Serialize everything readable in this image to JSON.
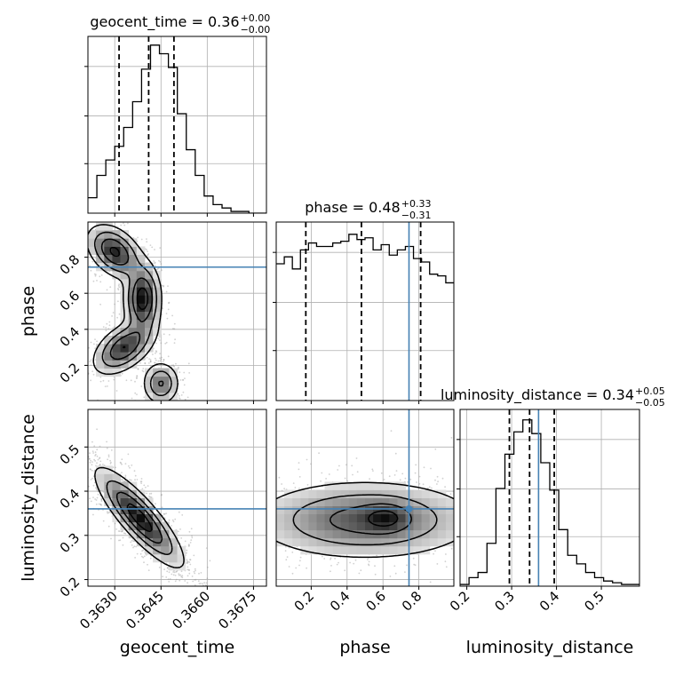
{
  "chart_data": {
    "type": "corner",
    "parameters": [
      "geocent_time",
      "phase",
      "luminosity_distance"
    ],
    "colors": {
      "truth": "#4682b4",
      "hist": "#000000",
      "quantile": "#000000",
      "grid": "#b0b0b0",
      "samples": "#999999"
    },
    "grid": true,
    "titles": [
      {
        "param": "geocent_time",
        "median": "0.36",
        "plus": "+0.00",
        "minus": "−0.00"
      },
      {
        "param": "phase",
        "median": "0.48",
        "plus": "+0.33",
        "minus": "−0.31"
      },
      {
        "param": "luminosity_distance",
        "median": "0.34",
        "plus": "+0.05",
        "minus": "−0.05"
      }
    ],
    "truths": {
      "geocent_time": null,
      "phase": 0.745,
      "luminosity_distance": 0.36
    },
    "axes": {
      "geocent_time": {
        "range": [
          0.36213,
          0.36792
        ],
        "ticks": [
          0.363,
          0.3645,
          0.366,
          0.3675
        ],
        "tick_labels": [
          "0.3630",
          "0.3645",
          "0.3660",
          "0.3675"
        ]
      },
      "phase": {
        "range": [
          0.005,
          0.995
        ],
        "ticks": [
          0.2,
          0.4,
          0.6,
          0.8
        ],
        "tick_labels": [
          "0.2",
          "0.4",
          "0.6",
          "0.8"
        ]
      },
      "luminosity_distance": {
        "range": [
          0.185,
          0.585
        ],
        "ticks": [
          0.2,
          0.3,
          0.4,
          0.5
        ],
        "tick_labels": [
          "0.2",
          "0.3",
          "0.4",
          "0.5"
        ]
      }
    },
    "marginals": {
      "geocent_time": {
        "bin_edges": [
          0.36213,
          0.36242,
          0.36271,
          0.363,
          0.36329,
          0.36358,
          0.36387,
          0.36416,
          0.36445,
          0.36474,
          0.36503,
          0.36532,
          0.36561,
          0.3659,
          0.36619,
          0.36648,
          0.36677,
          0.36706,
          0.36735,
          0.36764,
          0.36792
        ],
        "counts": [
          0.09,
          0.22,
          0.31,
          0.39,
          0.5,
          0.65,
          0.84,
          0.98,
          0.93,
          0.85,
          0.58,
          0.37,
          0.22,
          0.1,
          0.05,
          0.03,
          0.01,
          0.01,
          0.0,
          0.0
        ],
        "quantiles": [
          0.36314,
          0.3641,
          0.36492
        ]
      },
      "phase": {
        "bin_edges": [
          0.005,
          0.05,
          0.095,
          0.14,
          0.185,
          0.23,
          0.275,
          0.32,
          0.365,
          0.41,
          0.455,
          0.5,
          0.545,
          0.59,
          0.635,
          0.68,
          0.725,
          0.77,
          0.815,
          0.86,
          0.905,
          0.95,
          0.995
        ],
        "counts": [
          0.79,
          0.83,
          0.76,
          0.87,
          0.91,
          0.89,
          0.89,
          0.91,
          0.92,
          0.96,
          0.93,
          0.94,
          0.87,
          0.9,
          0.84,
          0.87,
          0.89,
          0.82,
          0.8,
          0.73,
          0.72,
          0.68
        ],
        "quantiles": [
          0.17,
          0.48,
          0.81
        ]
      },
      "luminosity_distance": {
        "bin_edges": [
          0.185,
          0.205,
          0.225,
          0.245,
          0.265,
          0.285,
          0.305,
          0.325,
          0.345,
          0.365,
          0.385,
          0.405,
          0.425,
          0.445,
          0.465,
          0.485,
          0.505,
          0.525,
          0.545,
          0.565,
          0.585
        ],
        "counts": [
          0.01,
          0.05,
          0.08,
          0.25,
          0.57,
          0.77,
          0.9,
          0.97,
          0.89,
          0.72,
          0.56,
          0.33,
          0.18,
          0.13,
          0.08,
          0.05,
          0.03,
          0.02,
          0.01,
          0.01
        ],
        "quantiles": [
          0.295,
          0.34,
          0.395
        ]
      }
    },
    "joint": [
      {
        "x": "geocent_time",
        "y": "phase",
        "blobs": [
          {
            "cx": 0.363,
            "cy": 0.83,
            "sx": 0.00045,
            "sy": 0.075,
            "rho": -0.4,
            "w": 0.9
          },
          {
            "cx": 0.3639,
            "cy": 0.57,
            "sx": 0.0003,
            "sy": 0.1,
            "rho": 0.0,
            "w": 1.0
          },
          {
            "cx": 0.3633,
            "cy": 0.3,
            "sx": 0.0005,
            "sy": 0.075,
            "rho": 0.5,
            "w": 0.85
          },
          {
            "cx": 0.3645,
            "cy": 0.1,
            "sx": 0.0003,
            "sy": 0.06,
            "rho": 0.0,
            "w": 0.6
          }
        ]
      },
      {
        "x": "geocent_time",
        "y": "luminosity_distance",
        "blobs": [
          {
            "cx": 0.3638,
            "cy": 0.34,
            "sx": 0.0007,
            "sy": 0.055,
            "rho": -0.85,
            "w": 1.0
          }
        ]
      },
      {
        "x": "phase",
        "y": "luminosity_distance",
        "blobs": [
          {
            "cx": 0.5,
            "cy": 0.335,
            "sx": 0.32,
            "sy": 0.045,
            "rho": 0.0,
            "w": 1.0
          },
          {
            "cx": 0.62,
            "cy": 0.34,
            "sx": 0.08,
            "sy": 0.02,
            "rho": 0.0,
            "w": 0.5
          }
        ]
      }
    ]
  }
}
